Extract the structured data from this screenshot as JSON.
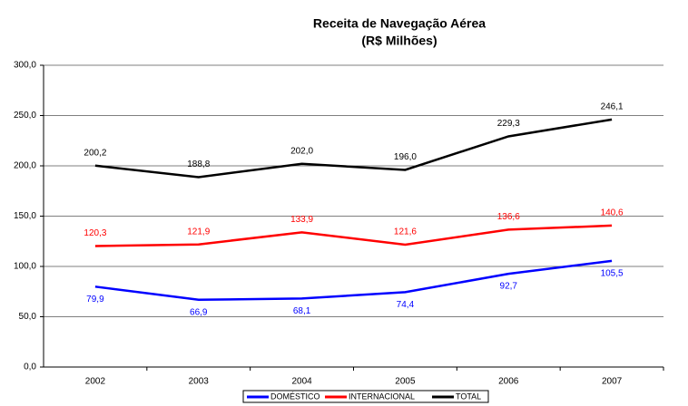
{
  "chart_data": {
    "type": "line",
    "title": "Receita de Navegação Aérea",
    "subtitle": "(R$ Milhões)",
    "categories": [
      "2002",
      "2003",
      "2004",
      "2005",
      "2006",
      "2007"
    ],
    "series": [
      {
        "name": "DOMÉSTICO",
        "color": "#0000ff",
        "values": [
          79.9,
          66.9,
          68.1,
          74.4,
          92.7,
          105.5
        ],
        "value_labels": [
          "79,9",
          "66,9",
          "68,1",
          "74,4",
          "92,7",
          "105,5"
        ]
      },
      {
        "name": "INTERNACIONAL",
        "color": "#ff0000",
        "values": [
          120.3,
          121.9,
          133.9,
          121.6,
          136.6,
          140.6
        ],
        "value_labels": [
          "120,3",
          "121,9",
          "133,9",
          "121,6",
          "136,6",
          "140,6"
        ]
      },
      {
        "name": "TOTAL",
        "color": "#000000",
        "values": [
          200.2,
          188.8,
          202.0,
          196.0,
          229.3,
          246.1
        ],
        "value_labels": [
          "200,2",
          "188,8",
          "202,0",
          "196,0",
          "229,3",
          "246,1"
        ]
      }
    ],
    "ylim": [
      0,
      300
    ],
    "yticks": [
      {
        "value": 0,
        "label": "0,0"
      },
      {
        "value": 50,
        "label": "50,0"
      },
      {
        "value": 100,
        "label": "100,0"
      },
      {
        "value": 150,
        "label": "150,0"
      },
      {
        "value": 200,
        "label": "200,0"
      },
      {
        "value": 250,
        "label": "250,0"
      },
      {
        "value": 300,
        "label": "300,0"
      }
    ],
    "grid": true,
    "legend": "bottom"
  }
}
